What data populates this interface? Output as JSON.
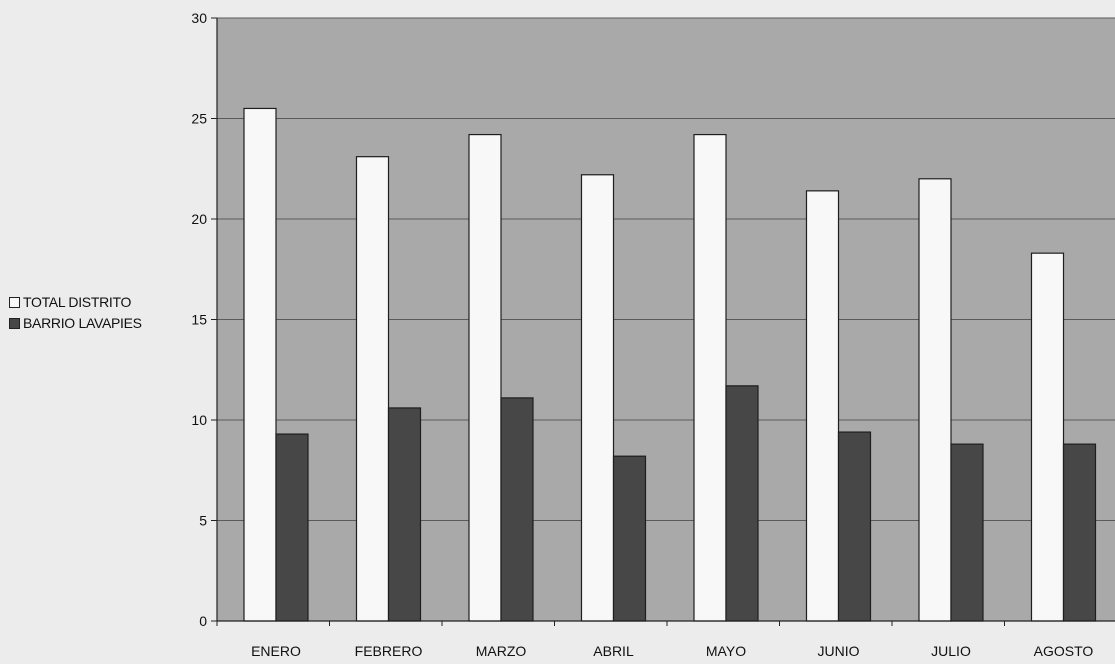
{
  "chart_data": {
    "type": "bar",
    "title": "",
    "xlabel": "",
    "ylabel": "",
    "categories": [
      "ENERO",
      "FEBRERO",
      "MARZO",
      "ABRIL",
      "MAYO",
      "JUNIO",
      "JULIO",
      "AGOSTO"
    ],
    "series": [
      {
        "name": "TOTAL DISTRITO",
        "values": [
          25.5,
          23.1,
          24.2,
          22.2,
          24.2,
          21.4,
          22.0,
          18.3
        ],
        "color": "#f8f8f8"
      },
      {
        "name": "BARRIO LAVAPIES",
        "values": [
          9.3,
          10.6,
          11.1,
          8.2,
          11.7,
          9.4,
          8.8,
          8.8
        ],
        "color": "#474747"
      }
    ],
    "ylim": [
      0,
      30
    ],
    "yticks": [
      0,
      5,
      10,
      15,
      20,
      25,
      30
    ],
    "grid": true,
    "legend_position": "left",
    "plot_background": "#a9a9a9",
    "bar_edge": "#1e1e1e"
  }
}
